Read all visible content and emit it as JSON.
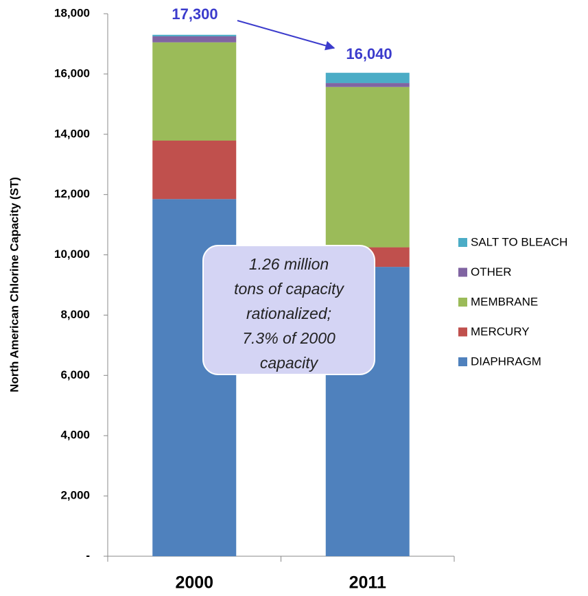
{
  "chart_data": {
    "type": "stacked_bar",
    "y_axis_label": "North American Chlorine Capacity (ST)",
    "categories": [
      "2000",
      "2011"
    ],
    "series": [
      {
        "name": "DIAPHRAGM",
        "color": "#4f81bd",
        "values": [
          11850,
          9600
        ]
      },
      {
        "name": "MERCURY",
        "color": "#c0504d",
        "values": [
          1940,
          650
        ]
      },
      {
        "name": "MEMBRANE",
        "color": "#9bbb59",
        "values": [
          3260,
          5320
        ]
      },
      {
        "name": "OTHER",
        "color": "#8064a2",
        "values": [
          200,
          130
        ]
      },
      {
        "name": "SALT TO BLEACH",
        "color": "#4bacc6",
        "values": [
          50,
          340
        ]
      }
    ],
    "totals": {
      "values": [
        17300,
        16040
      ],
      "value_labels": [
        "17,300",
        "16,040"
      ]
    },
    "annotation": [
      "1.26 million",
      "tons of capacity",
      "rationalized;",
      "7.3% of 2000",
      "capacity"
    ],
    "ylim": [
      0,
      18000
    ],
    "yticks": [
      {
        "value": 0,
        "label": "-"
      },
      {
        "value": 2000,
        "label": "2,000"
      },
      {
        "value": 4000,
        "label": "4,000"
      },
      {
        "value": 6000,
        "label": "6,000"
      },
      {
        "value": 8000,
        "label": "8,000"
      },
      {
        "value": 10000,
        "label": "10,000"
      },
      {
        "value": 12000,
        "label": "12,000"
      },
      {
        "value": 14000,
        "label": "14,000"
      },
      {
        "value": 16000,
        "label": "16,000"
      },
      {
        "value": 18000,
        "label": "18,000"
      }
    ],
    "legend": "right"
  }
}
